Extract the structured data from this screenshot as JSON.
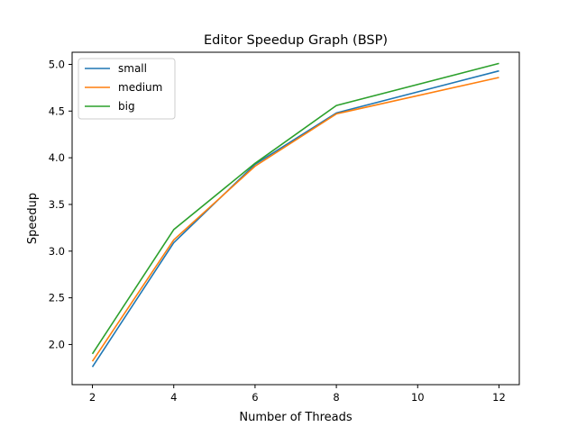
{
  "chart_data": {
    "type": "line",
    "title": "Editor Speedup Graph (BSP)",
    "xlabel": "Number of Threads",
    "ylabel": "Speedup",
    "x": [
      2,
      4,
      6,
      8,
      12
    ],
    "xlim": [
      1.5,
      12.5
    ],
    "ylim": [
      1.57,
      5.13
    ],
    "xticks": [
      2,
      4,
      6,
      8,
      10,
      12
    ],
    "xtick_labels": [
      "2",
      "4",
      "6",
      "8",
      "10",
      "12"
    ],
    "yticks": [
      2.0,
      2.5,
      3.0,
      3.5,
      4.0,
      4.5,
      5.0
    ],
    "ytick_labels": [
      "2.0",
      "2.5",
      "3.0",
      "3.5",
      "4.0",
      "4.5",
      "5.0"
    ],
    "grid": false,
    "legend_position": "upper left",
    "series": [
      {
        "name": "small",
        "color": "#1f77b4",
        "values": [
          1.76,
          3.09,
          3.93,
          4.48,
          4.93
        ]
      },
      {
        "name": "medium",
        "color": "#ff7f0e",
        "values": [
          1.82,
          3.12,
          3.91,
          4.47,
          4.86
        ]
      },
      {
        "name": "big",
        "color": "#2ca02c",
        "values": [
          1.9,
          3.23,
          3.94,
          4.56,
          5.01
        ]
      }
    ]
  }
}
